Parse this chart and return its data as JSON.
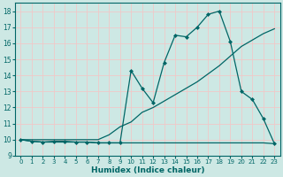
{
  "xlabel": "Humidex (Indice chaleur)",
  "bg_color": "#cde8e4",
  "grid_color": "#f0c8c8",
  "line_color": "#006666",
  "xlim": [
    -0.5,
    23.5
  ],
  "ylim": [
    9,
    18.5
  ],
  "yticks": [
    9,
    10,
    11,
    12,
    13,
    14,
    15,
    16,
    17,
    18
  ],
  "xticks": [
    0,
    1,
    2,
    3,
    4,
    5,
    6,
    7,
    8,
    9,
    10,
    11,
    12,
    13,
    14,
    15,
    16,
    17,
    18,
    19,
    20,
    21,
    22,
    23
  ],
  "line1_x": [
    0,
    1,
    2,
    3,
    4,
    5,
    6,
    7,
    8,
    9,
    10,
    11,
    12,
    13,
    14,
    15,
    16,
    17,
    18,
    19,
    20,
    21,
    22,
    23
  ],
  "line1_y": [
    10.0,
    9.9,
    9.85,
    9.85,
    9.85,
    9.85,
    9.85,
    9.8,
    9.8,
    9.8,
    9.8,
    9.8,
    9.8,
    9.8,
    9.8,
    9.8,
    9.8,
    9.8,
    9.8,
    9.8,
    9.8,
    9.8,
    9.8,
    9.75
  ],
  "line2_x": [
    0,
    1,
    2,
    3,
    4,
    5,
    6,
    7,
    8,
    9,
    10,
    11,
    12,
    13,
    14,
    15,
    16,
    17,
    18,
    19,
    20,
    21,
    22,
    23
  ],
  "line2_y": [
    10.0,
    10.0,
    10.0,
    10.0,
    10.0,
    10.0,
    10.0,
    10.0,
    10.3,
    10.8,
    11.1,
    11.7,
    12.0,
    12.4,
    12.8,
    13.2,
    13.6,
    14.1,
    14.6,
    15.2,
    15.8,
    16.2,
    16.6,
    16.9
  ],
  "line3_x": [
    0,
    1,
    2,
    3,
    4,
    5,
    6,
    7,
    8,
    9,
    10,
    11,
    12,
    13,
    14,
    15,
    16,
    17,
    18,
    19,
    20,
    21,
    22,
    23
  ],
  "line3_y": [
    10.0,
    9.9,
    9.85,
    9.9,
    9.9,
    9.85,
    9.85,
    9.8,
    9.8,
    9.8,
    14.3,
    13.2,
    12.3,
    14.8,
    16.5,
    16.4,
    17.0,
    17.8,
    18.0,
    16.1,
    13.0,
    12.5,
    11.3,
    9.75
  ],
  "line3_markers_x": [
    0,
    1,
    2,
    3,
    4,
    5,
    6,
    7,
    8,
    9,
    10,
    11,
    12,
    13,
    14,
    15,
    16,
    17,
    18,
    19,
    20,
    21,
    22,
    23
  ],
  "line3_markers_y": [
    10.0,
    9.9,
    9.85,
    9.9,
    9.9,
    9.85,
    9.85,
    9.8,
    9.8,
    9.8,
    14.3,
    13.2,
    12.3,
    14.8,
    16.5,
    16.4,
    17.0,
    17.8,
    18.0,
    16.1,
    13.0,
    12.5,
    11.3,
    9.75
  ]
}
